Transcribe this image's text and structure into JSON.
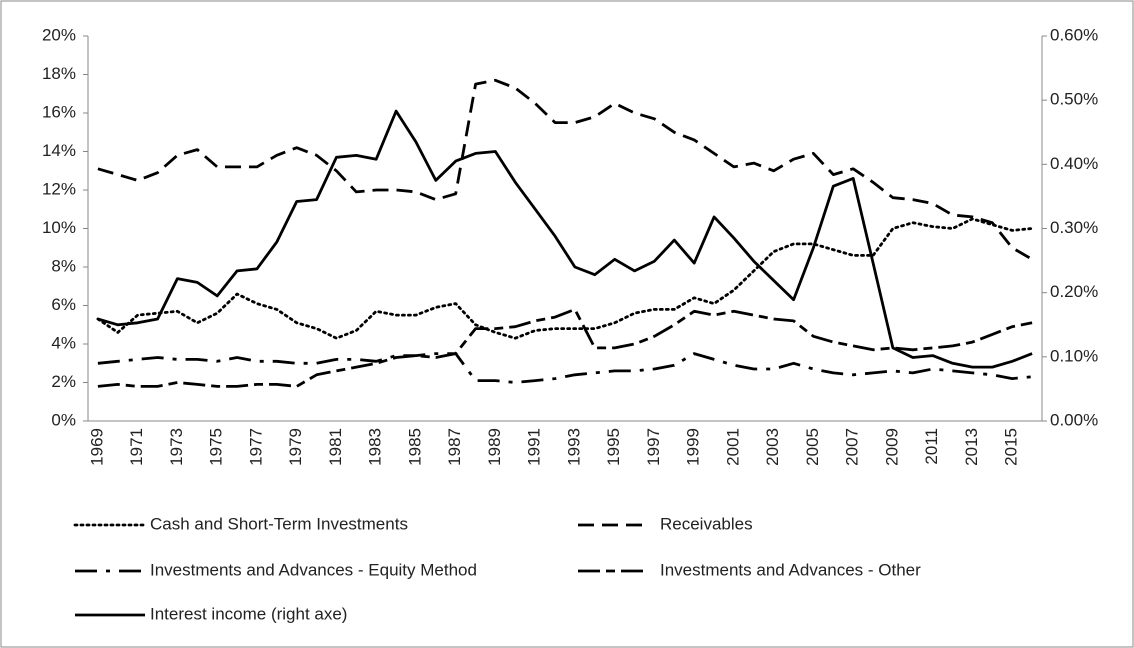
{
  "chart_data": {
    "type": "line",
    "categories": [
      "1969",
      null,
      "1971",
      null,
      "1973",
      null,
      "1975",
      null,
      "1977",
      null,
      "1979",
      null,
      "1981",
      null,
      "1983",
      null,
      "1985",
      null,
      "1987",
      null,
      "1989",
      null,
      "1991",
      null,
      "1993",
      null,
      "1995",
      null,
      "1997",
      null,
      "1999",
      null,
      "2001",
      null,
      "2003",
      null,
      "2005",
      null,
      "2007",
      null,
      "2009",
      null,
      "2011",
      null,
      "2013",
      null,
      "2015",
      null
    ],
    "series": [
      {
        "name": "Cash and Short-Term Investments",
        "color": "#000000",
        "dash": "dotted",
        "values": [
          5.3,
          4.6,
          5.5,
          5.6,
          5.7,
          5.1,
          5.6,
          6.6,
          6.1,
          5.8,
          5.1,
          4.8,
          4.3,
          4.7,
          5.7,
          5.5,
          5.5,
          5.9,
          6.1,
          5.0,
          4.6,
          4.3,
          4.7,
          4.8,
          4.8,
          4.8,
          5.1,
          5.6,
          5.8,
          5.8,
          6.4,
          6.1,
          6.8,
          7.8,
          8.8,
          9.2,
          9.2,
          8.9,
          8.6,
          8.6,
          10.0,
          10.3,
          10.1,
          10.0,
          10.5,
          10.2,
          9.9,
          10.0
        ]
      },
      {
        "name": "Receivables",
        "color": "#000000",
        "dash": "dashed",
        "values": [
          13.1,
          12.8,
          12.5,
          12.9,
          13.8,
          14.1,
          13.2,
          13.2,
          13.2,
          13.8,
          14.2,
          13.8,
          13.0,
          11.9,
          12.0,
          12.0,
          11.9,
          11.5,
          11.8,
          17.5,
          17.7,
          17.3,
          16.5,
          15.5,
          15.5,
          15.8,
          16.5,
          16.0,
          15.7,
          15.0,
          14.6,
          13.9,
          13.2,
          13.4,
          13.0,
          13.6,
          13.9,
          12.8,
          13.1,
          12.4,
          11.6,
          11.5,
          11.3,
          10.7,
          10.6,
          10.3,
          9.0,
          8.4
        ]
      },
      {
        "name": "Investments and Advances - Equity Method",
        "color": "#000000",
        "dash": "dash-dot",
        "values": [
          3.0,
          3.1,
          3.2,
          3.3,
          3.2,
          3.2,
          3.1,
          3.3,
          3.1,
          3.1,
          3.0,
          3.0,
          3.2,
          3.2,
          3.1,
          3.4,
          3.4,
          3.5,
          3.5,
          2.1,
          2.1,
          2.0,
          2.1,
          2.2,
          2.4,
          2.5,
          2.6,
          2.6,
          2.7,
          2.9,
          3.5,
          3.2,
          2.9,
          2.7,
          2.7,
          3.0,
          2.7,
          2.5,
          2.4,
          2.5,
          2.6,
          2.5,
          2.7,
          2.6,
          2.5,
          2.4,
          2.2,
          2.3
        ]
      },
      {
        "name": "Investments and Advances - Other",
        "color": "#000000",
        "dash": "long-short",
        "values": [
          1.8,
          1.9,
          1.8,
          1.8,
          2.0,
          1.9,
          1.8,
          1.8,
          1.9,
          1.9,
          1.8,
          2.4,
          2.6,
          2.8,
          3.0,
          3.3,
          3.4,
          3.3,
          3.5,
          4.8,
          4.8,
          4.9,
          5.2,
          5.4,
          5.8,
          3.8,
          3.8,
          4.0,
          4.4,
          5.0,
          5.7,
          5.5,
          5.7,
          5.5,
          5.3,
          5.2,
          4.4,
          4.1,
          3.9,
          3.7,
          3.8,
          3.7,
          3.8,
          3.9,
          4.1,
          4.5,
          4.9,
          5.1
        ]
      },
      {
        "name": "Interest income (right axe)",
        "color": "#000000",
        "dash": "solid",
        "axis": "y2",
        "values": [
          0.159,
          0.15,
          0.153,
          0.159,
          0.222,
          0.216,
          0.195,
          0.234,
          0.237,
          0.279,
          0.342,
          0.345,
          0.411,
          0.414,
          0.408,
          0.483,
          0.435,
          0.375,
          0.405,
          0.417,
          0.42,
          0.372,
          0.33,
          0.288,
          0.24,
          0.228,
          0.252,
          0.234,
          0.249,
          0.282,
          0.246,
          0.318,
          0.285,
          0.249,
          0.219,
          0.189,
          0.27,
          0.366,
          0.378,
          0.246,
          0.114,
          0.099,
          0.102,
          0.09,
          0.084,
          0.084,
          0.093,
          0.105
        ]
      }
    ],
    "ylim": [
      0,
      20
    ],
    "yticks": [
      {
        "value": 0,
        "label": "0%"
      },
      {
        "value": 2,
        "label": "2%"
      },
      {
        "value": 4,
        "label": "4%"
      },
      {
        "value": 6,
        "label": "6%"
      },
      {
        "value": 8,
        "label": "8%"
      },
      {
        "value": 10,
        "label": "10%"
      },
      {
        "value": 12,
        "label": "12%"
      },
      {
        "value": 14,
        "label": "14%"
      },
      {
        "value": 16,
        "label": "16%"
      },
      {
        "value": 18,
        "label": "18%"
      },
      {
        "value": 20,
        "label": "20%"
      }
    ],
    "y2lim": [
      0,
      0.6
    ],
    "y2ticks": [
      {
        "value": 0,
        "label": "0.00%"
      },
      {
        "value": 0.1,
        "label": "0.10%"
      },
      {
        "value": 0.2,
        "label": "0.20%"
      },
      {
        "value": 0.3,
        "label": "0.30%"
      },
      {
        "value": 0.4,
        "label": "0.40%"
      },
      {
        "value": 0.5,
        "label": "0.50%"
      },
      {
        "value": 0.6,
        "label": "0.60%"
      }
    ],
    "grid": false,
    "legend": "bottom"
  }
}
